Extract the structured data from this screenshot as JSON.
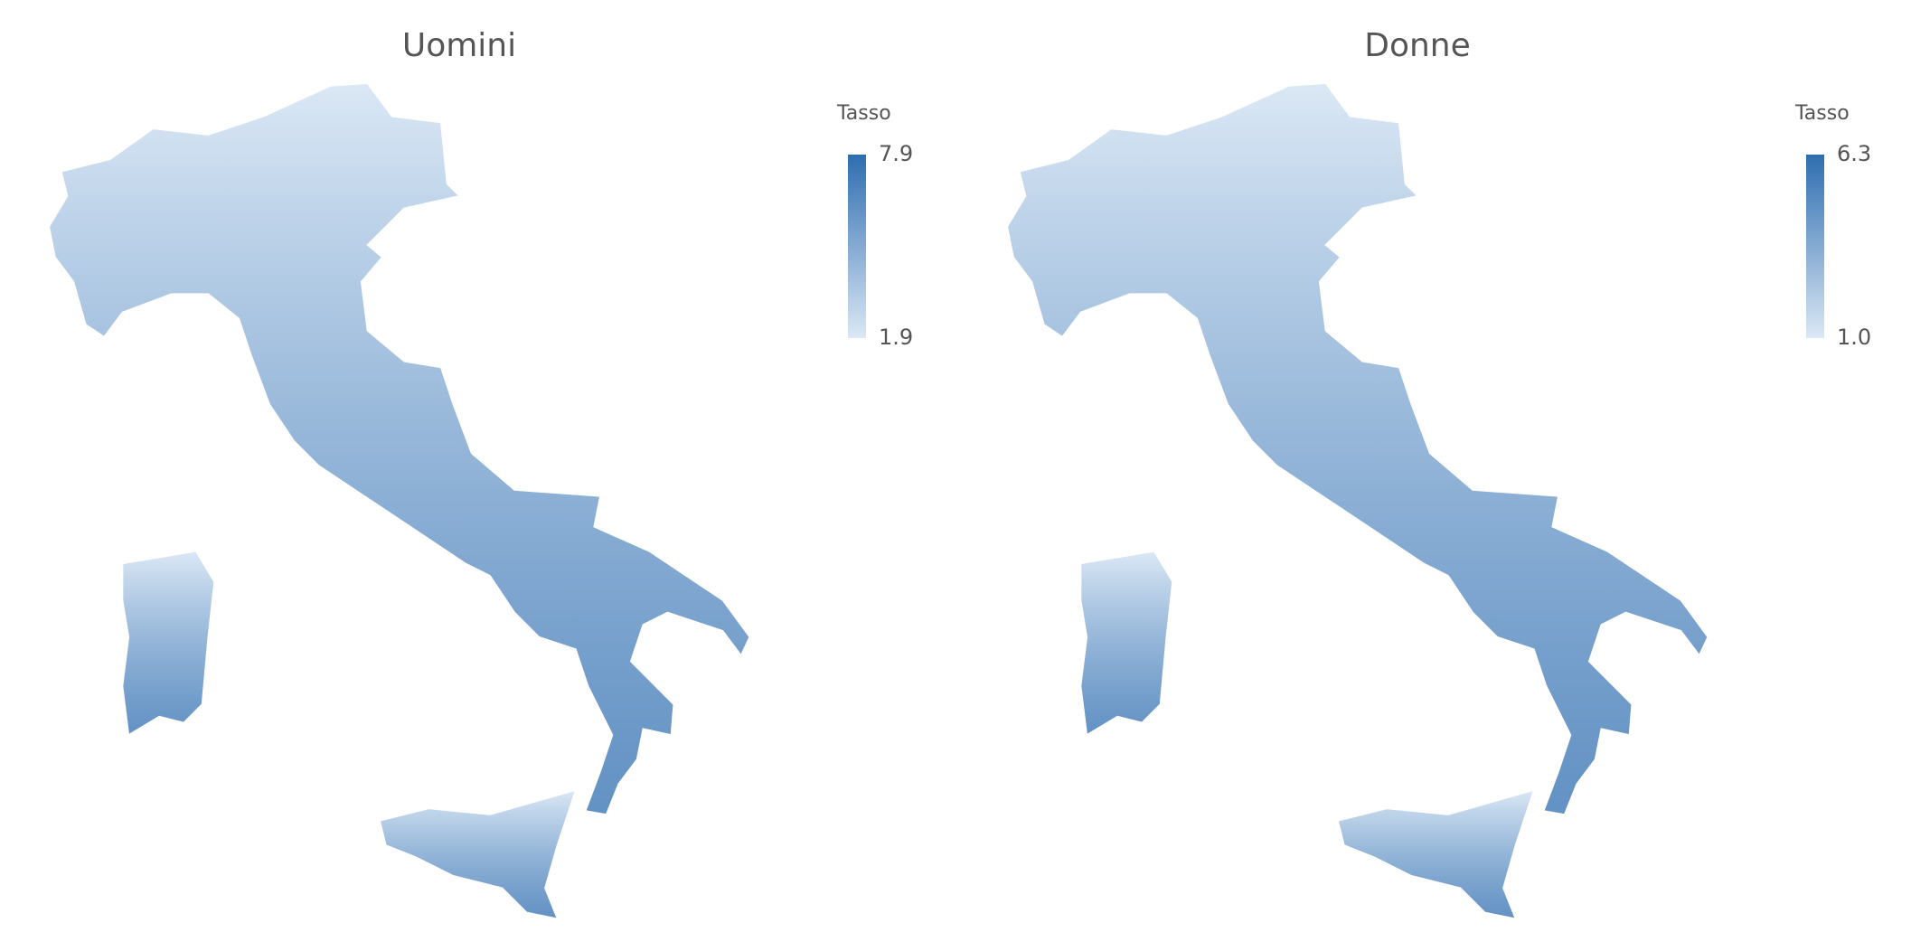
{
  "maps": [
    {
      "title": "Uomini",
      "legend": {
        "title": "Tasso",
        "ticks": [
          1.9,
          7.9
        ],
        "colorscale": [
          "#dbe8f5",
          "#2e6db0"
        ]
      }
    },
    {
      "title": "Donne",
      "legend": {
        "title": "Tasso",
        "ticks": [
          {
            "value": 1,
            "label": "1.0"
          },
          6.3
        ],
        "colorscale": [
          "#dbe8f5",
          "#2e6db0"
        ]
      }
    }
  ]
}
